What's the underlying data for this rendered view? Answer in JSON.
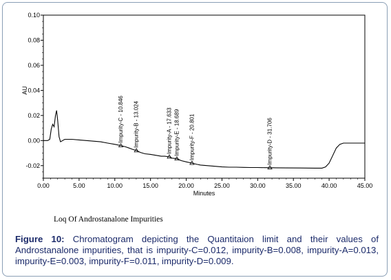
{
  "chart_data": {
    "type": "line",
    "xlabel": "Minutes",
    "ylabel": "AU",
    "xlim": [
      0,
      45
    ],
    "ylim": [
      -0.03,
      0.1
    ],
    "x_ticks": [
      "0.00",
      "5.00",
      "10.00",
      "15.00",
      "20.00",
      "25.00",
      "30.00",
      "35.00",
      "40.00",
      "45.00"
    ],
    "y_ticks": [
      "-0.02",
      "0.00",
      "0.02",
      "0.04",
      "0.06",
      "0.08",
      "0.10"
    ],
    "line_color": "#000000",
    "series": [
      {
        "name": "",
        "x": [
          0,
          0.3,
          0.6,
          0.9,
          1.1,
          1.3,
          1.5,
          1.7,
          1.85,
          2.0,
          2.2,
          2.4,
          2.7,
          3.0,
          3.5,
          4,
          5,
          6,
          7,
          8,
          9,
          10,
          10.846,
          11.5,
          12,
          12.5,
          13.024,
          13.6,
          14.2,
          15,
          16,
          16.5,
          17,
          17.633,
          18,
          18.689,
          19.3,
          20,
          20.801,
          21.5,
          22,
          23,
          24,
          25,
          26,
          27,
          28,
          29,
          30,
          31,
          31.706,
          32.5,
          34,
          36,
          38,
          39,
          39.5,
          40,
          40.5,
          41,
          41.5,
          42,
          42.5,
          43,
          44,
          45
        ],
        "y": [
          0,
          0,
          0,
          0.001,
          0.009,
          0.013,
          0.011,
          0.02,
          0.024,
          0.016,
          0.003,
          -0.001,
          0.0,
          0.001,
          0.001,
          0.001,
          0.0005,
          0.0,
          -0.0005,
          -0.001,
          -0.002,
          -0.003,
          -0.004,
          -0.005,
          -0.006,
          -0.007,
          -0.008,
          -0.0095,
          -0.0105,
          -0.011,
          -0.012,
          -0.0125,
          -0.0125,
          -0.013,
          -0.014,
          -0.0145,
          -0.016,
          -0.017,
          -0.018,
          -0.019,
          -0.0195,
          -0.02,
          -0.0205,
          -0.021,
          -0.0212,
          -0.0212,
          -0.0214,
          -0.0215,
          -0.0215,
          -0.0216,
          -0.0216,
          -0.0217,
          -0.0218,
          -0.0219,
          -0.022,
          -0.022,
          -0.021,
          -0.018,
          -0.012,
          -0.006,
          -0.003,
          -0.002,
          -0.002,
          -0.002,
          -0.002,
          -0.002
        ]
      }
    ],
    "annotations": [
      {
        "label": "Impurity-C - 10.846",
        "x": 10.846,
        "y": -0.004
      },
      {
        "label": "Impurity-B - 13.024",
        "x": 13.024,
        "y": -0.008
      },
      {
        "label": "Impurity-A - 17.633",
        "x": 17.633,
        "y": -0.013
      },
      {
        "label": "Impurity-E - 18.689",
        "x": 18.689,
        "y": -0.0145
      },
      {
        "label": "Impurity-F - 20.801",
        "x": 20.801,
        "y": -0.018
      },
      {
        "label": "Impurity-D - 31.706",
        "x": 31.706,
        "y": -0.0216
      }
    ]
  },
  "chart_subtitle": "Loq Of  Androstanalone Impurities",
  "caption": {
    "label": "Figure 10:",
    "text": " Chromatogram depicting the Quantitaion limit and their values of Androstanalone impurities, that is impurity-C=0.012, impurity-B=0.008, impurity-A=0.013, impurity-E=0.003, impurity-F=0.011, impurity-D=0.009."
  }
}
